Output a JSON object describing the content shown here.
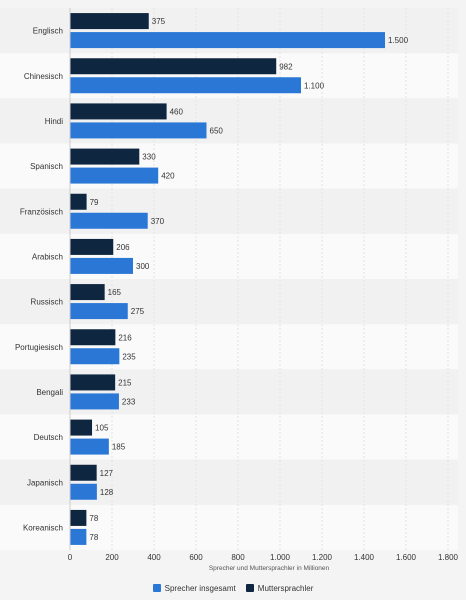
{
  "chart_data": {
    "type": "bar",
    "orientation": "horizontal",
    "categories": [
      "Englisch",
      "Chinesisch",
      "Hindi",
      "Spanisch",
      "Französisch",
      "Arabisch",
      "Russisch",
      "Portugiesisch",
      "Bengali",
      "Deutsch",
      "Japanisch",
      "Koreanisch"
    ],
    "series": [
      {
        "name": "Muttersprachler",
        "color": "#0f2641",
        "values": [
          375,
          982,
          460,
          330,
          79,
          206,
          165,
          216,
          215,
          105,
          127,
          78
        ],
        "labels": [
          "375",
          "982",
          "460",
          "330",
          "79",
          "206",
          "165",
          "216",
          "215",
          "105",
          "127",
          "78"
        ]
      },
      {
        "name": "Sprecher insgesamt",
        "color": "#2a77d6",
        "values": [
          1500,
          1100,
          650,
          420,
          370,
          300,
          275,
          235,
          233,
          185,
          128,
          78
        ],
        "labels": [
          "1.500",
          "1.100",
          "650",
          "420",
          "370",
          "300",
          "275",
          "235",
          "233",
          "185",
          "128",
          "78"
        ]
      }
    ],
    "xlim": [
      0,
      1800
    ],
    "xticks": [
      0,
      200,
      400,
      600,
      800,
      1000,
      1200,
      1400,
      1600,
      1800
    ],
    "xtick_labels": [
      "0",
      "200",
      "400",
      "600",
      "800",
      "1.000",
      "1.200",
      "1.400",
      "1.600",
      "1.800"
    ],
    "xlabel": "Sprecher und Muttersprachler in Millionen",
    "ylabel": "",
    "grid": true,
    "legend_position": "bottom",
    "legend_order": [
      "Sprecher insgesamt",
      "Muttersprachler"
    ]
  }
}
